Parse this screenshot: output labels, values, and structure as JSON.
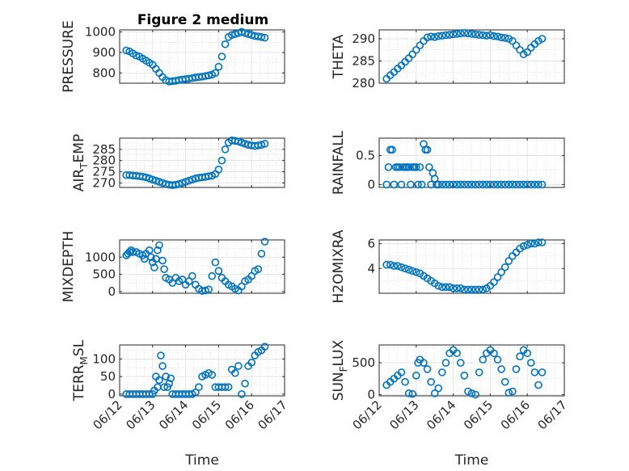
{
  "figure_title": "Figure 2 medium",
  "colors": {
    "marker": "#0072bd",
    "axes": "#262626"
  },
  "chart_data": [
    {
      "type": "scatter",
      "id": "pressure",
      "ylabel": "PRESSURE",
      "title": "Figure 2 medium",
      "ylim": [
        750,
        1010
      ],
      "yticks": [
        800,
        900,
        1000
      ],
      "xlim": [
        0,
        5
      ],
      "xticklabels": [
        "06/12",
        "06/13",
        "06/14",
        "06/15",
        "06/16",
        "06/17"
      ],
      "show_xticklabels": false,
      "xlabel": "",
      "grid": true,
      "x": [
        0.2,
        0.3,
        0.4,
        0.5,
        0.6,
        0.7,
        0.8,
        0.9,
        1.0,
        1.1,
        1.2,
        1.3,
        1.4,
        1.5,
        1.6,
        1.7,
        1.8,
        1.9,
        2.0,
        2.1,
        2.2,
        2.3,
        2.4,
        2.5,
        2.6,
        2.7,
        2.8,
        2.9,
        3.0,
        3.1,
        3.2,
        3.3,
        3.4,
        3.5,
        3.6,
        3.7,
        3.8,
        3.9,
        4.0,
        4.1,
        4.2,
        4.3,
        4.4
      ],
      "y": [
        910,
        905,
        895,
        885,
        880,
        870,
        860,
        850,
        840,
        820,
        800,
        780,
        765,
        758,
        760,
        762,
        765,
        768,
        770,
        772,
        775,
        778,
        780,
        782,
        785,
        788,
        792,
        800,
        830,
        880,
        940,
        975,
        985,
        990,
        995,
        1000,
        995,
        990,
        985,
        980,
        978,
        975,
        972
      ]
    },
    {
      "type": "scatter",
      "id": "theta",
      "ylabel": "THETA",
      "ylim": [
        280,
        292
      ],
      "yticks": [
        280,
        285,
        290
      ],
      "xlim": [
        0,
        5
      ],
      "xticklabels": [
        "06/12",
        "06/13",
        "06/14",
        "06/15",
        "06/16",
        "06/17"
      ],
      "show_xticklabels": false,
      "xlabel": "",
      "grid": true,
      "x": [
        0.2,
        0.3,
        0.4,
        0.5,
        0.6,
        0.7,
        0.8,
        0.9,
        1.0,
        1.1,
        1.2,
        1.3,
        1.4,
        1.5,
        1.6,
        1.7,
        1.8,
        1.9,
        2.0,
        2.1,
        2.2,
        2.3,
        2.4,
        2.5,
        2.6,
        2.7,
        2.8,
        2.9,
        3.0,
        3.1,
        3.2,
        3.3,
        3.4,
        3.5,
        3.6,
        3.7,
        3.8,
        3.9,
        4.0,
        4.1,
        4.2,
        4.3,
        4.4
      ],
      "y": [
        281,
        281.8,
        282.5,
        283.3,
        284,
        284.8,
        285.6,
        286.5,
        287.5,
        288.5,
        289.5,
        290.3,
        290.5,
        290.4,
        290.6,
        290.7,
        290.8,
        290.9,
        291,
        291.1,
        291.2,
        291.3,
        291.2,
        291.1,
        291,
        290.9,
        290.8,
        290.7,
        290.8,
        290.6,
        290.5,
        290.3,
        290.2,
        290,
        289.5,
        288.5,
        287.5,
        286.5,
        287,
        288,
        288.8,
        289.5,
        290
      ]
    },
    {
      "type": "scatter",
      "id": "air_temp",
      "ylabel": "AIR_TEMP",
      "ylabel_main": "AIR",
      "ylabel_sub": "T",
      "ylabel_rest": "EMP",
      "ylim": [
        268,
        290
      ],
      "yticks": [
        270,
        275,
        280,
        285
      ],
      "xlim": [
        0,
        5
      ],
      "xticklabels": [
        "06/12",
        "06/13",
        "06/14",
        "06/15",
        "06/16",
        "06/17"
      ],
      "show_xticklabels": false,
      "xlabel": "",
      "grid": true,
      "x": [
        0.2,
        0.3,
        0.4,
        0.5,
        0.6,
        0.7,
        0.8,
        0.9,
        1.0,
        1.1,
        1.2,
        1.3,
        1.4,
        1.5,
        1.6,
        1.7,
        1.8,
        1.9,
        2.0,
        2.1,
        2.2,
        2.3,
        2.4,
        2.5,
        2.6,
        2.7,
        2.8,
        2.9,
        3.0,
        3.1,
        3.2,
        3.3,
        3.4,
        3.5,
        3.6,
        3.7,
        3.8,
        3.9,
        4.0,
        4.1,
        4.2,
        4.3,
        4.4
      ],
      "y": [
        273.5,
        273.5,
        273.3,
        273.2,
        273,
        272.8,
        272.5,
        272,
        271.5,
        271,
        270.5,
        270,
        269.5,
        269.2,
        269,
        269.2,
        269.5,
        270,
        270.5,
        271,
        271.5,
        272,
        272.3,
        272.5,
        272.7,
        273,
        273.2,
        274,
        276,
        280,
        285,
        288,
        289,
        288.8,
        288.5,
        288,
        287.5,
        287,
        286.8,
        286.5,
        286.8,
        287,
        287.5
      ]
    },
    {
      "type": "scatter",
      "id": "rainfall",
      "ylabel": "RAINFALL",
      "ylim": [
        -0.05,
        0.8
      ],
      "yticks": [
        0,
        0.5
      ],
      "ytickformat": "0.#",
      "xlim": [
        0,
        5
      ],
      "xticklabels": [
        "06/12",
        "06/13",
        "06/14",
        "06/15",
        "06/16",
        "06/17"
      ],
      "show_xticklabels": false,
      "xlabel": "",
      "grid": true,
      "x": [
        0.2,
        0.25,
        0.3,
        0.35,
        0.4,
        0.45,
        0.5,
        0.55,
        0.6,
        0.65,
        0.7,
        0.75,
        0.8,
        0.85,
        0.9,
        0.95,
        1.0,
        1.05,
        1.1,
        1.15,
        1.2,
        1.25,
        1.3,
        1.35,
        1.4,
        1.45,
        1.5,
        1.55,
        1.6,
        1.7,
        1.8,
        1.9,
        2.0,
        2.1,
        2.2,
        2.3,
        2.4,
        2.5,
        2.6,
        2.7,
        2.8,
        2.9,
        3.0,
        3.1,
        3.2,
        3.3,
        3.4,
        3.5,
        3.6,
        3.7,
        3.8,
        3.9,
        4.0,
        4.1,
        4.2,
        4.3,
        4.4
      ],
      "y": [
        0,
        0.3,
        0.6,
        0.6,
        0,
        0.3,
        0.3,
        0.3,
        0,
        0.3,
        0.3,
        0.3,
        0.3,
        0,
        0.3,
        0.3,
        0.3,
        0,
        0.3,
        0,
        0.7,
        0.6,
        0.6,
        0.3,
        0,
        0.2,
        0.1,
        0,
        0,
        0,
        0,
        0,
        0,
        0,
        0,
        0,
        0,
        0,
        0,
        0,
        0,
        0,
        0,
        0,
        0,
        0,
        0,
        0,
        0,
        0,
        0,
        0,
        0,
        0,
        0,
        0,
        0
      ]
    },
    {
      "type": "scatter",
      "id": "mixdepth",
      "ylabel": "MIXDEPTH",
      "ylim": [
        -50,
        1500
      ],
      "yticks": [
        0,
        500,
        1000
      ],
      "xlim": [
        0,
        5
      ],
      "xticklabels": [
        "06/12",
        "06/13",
        "06/14",
        "06/15",
        "06/16",
        "06/17"
      ],
      "show_xticklabels": false,
      "xlabel": "",
      "grid": true,
      "x": [
        0.2,
        0.25,
        0.3,
        0.35,
        0.4,
        0.5,
        0.6,
        0.7,
        0.75,
        0.8,
        0.9,
        0.95,
        1.0,
        1.05,
        1.1,
        1.15,
        1.2,
        1.3,
        1.35,
        1.4,
        1.5,
        1.6,
        1.7,
        1.8,
        1.9,
        2.0,
        2.1,
        2.2,
        2.3,
        2.4,
        2.5,
        2.6,
        2.7,
        2.8,
        2.9,
        3.0,
        3.1,
        3.2,
        3.3,
        3.4,
        3.5,
        3.6,
        3.7,
        3.8,
        3.9,
        4.0,
        4.1,
        4.2,
        4.3,
        4.4
      ],
      "y": [
        1050,
        1100,
        1150,
        1200,
        1150,
        1150,
        1100,
        1050,
        950,
        1100,
        1200,
        1000,
        850,
        700,
        950,
        1200,
        1350,
        900,
        650,
        400,
        350,
        250,
        400,
        300,
        350,
        200,
        300,
        450,
        200,
        80,
        20,
        30,
        60,
        450,
        850,
        600,
        400,
        300,
        200,
        150,
        80,
        30,
        150,
        300,
        350,
        450,
        600,
        650,
        1100,
        1450
      ]
    },
    {
      "type": "scatter",
      "id": "h2omixra",
      "ylabel": "H2OMIXRA",
      "ylim": [
        2,
        6.3
      ],
      "yticks": [
        4,
        6
      ],
      "xlim": [
        0,
        5
      ],
      "xticklabels": [
        "06/12",
        "06/13",
        "06/14",
        "06/15",
        "06/16",
        "06/17"
      ],
      "show_xticklabels": false,
      "xlabel": "",
      "grid": true,
      "x": [
        0.2,
        0.3,
        0.4,
        0.5,
        0.6,
        0.7,
        0.8,
        0.9,
        1.0,
        1.1,
        1.2,
        1.3,
        1.4,
        1.5,
        1.6,
        1.7,
        1.8,
        1.9,
        2.0,
        2.1,
        2.2,
        2.3,
        2.4,
        2.5,
        2.6,
        2.7,
        2.8,
        2.9,
        3.0,
        3.1,
        3.2,
        3.3,
        3.4,
        3.5,
        3.6,
        3.7,
        3.8,
        3.9,
        4.0,
        4.1,
        4.2,
        4.3,
        4.4
      ],
      "y": [
        4.3,
        4.3,
        4.2,
        4.2,
        4.1,
        4,
        3.9,
        3.8,
        3.7,
        3.6,
        3.4,
        3.2,
        3,
        2.8,
        2.6,
        2.5,
        2.5,
        2.5,
        2.4,
        2.4,
        2.4,
        2.3,
        2.3,
        2.3,
        2.3,
        2.3,
        2.3,
        2.4,
        2.6,
        2.9,
        3.3,
        3.7,
        4.1,
        4.6,
        5,
        5.3,
        5.6,
        5.8,
        5.9,
        6,
        6,
        6.1,
        6.1
      ]
    },
    {
      "type": "scatter",
      "id": "terr_msl",
      "ylabel": "TERR_MSL",
      "ylabel_main": "TERR",
      "ylabel_sub": "M",
      "ylabel_rest": "SL",
      "ylim": [
        -5,
        140
      ],
      "yticks": [
        0,
        50,
        100
      ],
      "xlim": [
        0,
        5
      ],
      "xticklabels": [
        "06/12",
        "06/13",
        "06/14",
        "06/15",
        "06/16",
        "06/17"
      ],
      "show_xticklabels": true,
      "xlabel": "Time",
      "grid": true,
      "x": [
        0.2,
        0.3,
        0.4,
        0.5,
        0.6,
        0.7,
        0.8,
        0.9,
        1.0,
        1.05,
        1.1,
        1.15,
        1.2,
        1.25,
        1.3,
        1.35,
        1.4,
        1.45,
        1.5,
        1.55,
        1.6,
        1.7,
        1.8,
        1.9,
        2.0,
        2.1,
        2.2,
        2.3,
        2.4,
        2.5,
        2.6,
        2.7,
        2.8,
        2.9,
        3.0,
        3.1,
        3.2,
        3.3,
        3.4,
        3.5,
        3.6,
        3.7,
        3.8,
        3.9,
        4.0,
        4.1,
        4.2,
        4.3,
        4.4
      ],
      "y": [
        0,
        0,
        0,
        0,
        0,
        0,
        0,
        0,
        0,
        10,
        50,
        20,
        40,
        110,
        80,
        20,
        50,
        20,
        30,
        45,
        0,
        0,
        0,
        0,
        0,
        0,
        0,
        5,
        20,
        50,
        55,
        60,
        55,
        20,
        20,
        20,
        20,
        20,
        70,
        60,
        80,
        0,
        30,
        80,
        90,
        110,
        120,
        125,
        135
      ]
    },
    {
      "type": "scatter",
      "id": "sun_flux",
      "ylabel": "SUN_FLUX",
      "ylabel_main": "SUN",
      "ylabel_sub": "F",
      "ylabel_rest": "LUX",
      "ylim": [
        -20,
        780
      ],
      "yticks": [
        0,
        500
      ],
      "xlim": [
        0,
        5
      ],
      "xticklabels": [
        "06/12",
        "06/13",
        "06/14",
        "06/15",
        "06/16",
        "06/17"
      ],
      "show_xticklabels": true,
      "xlabel": "Time",
      "grid": true,
      "x": [
        0.2,
        0.3,
        0.4,
        0.5,
        0.6,
        0.7,
        0.8,
        0.9,
        1.0,
        1.05,
        1.1,
        1.2,
        1.3,
        1.4,
        1.5,
        1.6,
        1.7,
        1.8,
        1.9,
        2.0,
        2.1,
        2.2,
        2.3,
        2.4,
        2.5,
        2.6,
        2.7,
        2.8,
        2.9,
        3.0,
        3.1,
        3.2,
        3.3,
        3.4,
        3.5,
        3.6,
        3.7,
        3.8,
        3.9,
        4.0,
        4.1,
        4.2,
        4.3,
        4.4
      ],
      "y": [
        150,
        200,
        250,
        300,
        350,
        200,
        20,
        10,
        300,
        500,
        550,
        500,
        400,
        200,
        20,
        100,
        350,
        500,
        650,
        700,
        650,
        500,
        300,
        50,
        20,
        0,
        350,
        550,
        650,
        700,
        650,
        550,
        400,
        200,
        30,
        50,
        400,
        600,
        700,
        650,
        500,
        350,
        150,
        350
      ]
    }
  ]
}
